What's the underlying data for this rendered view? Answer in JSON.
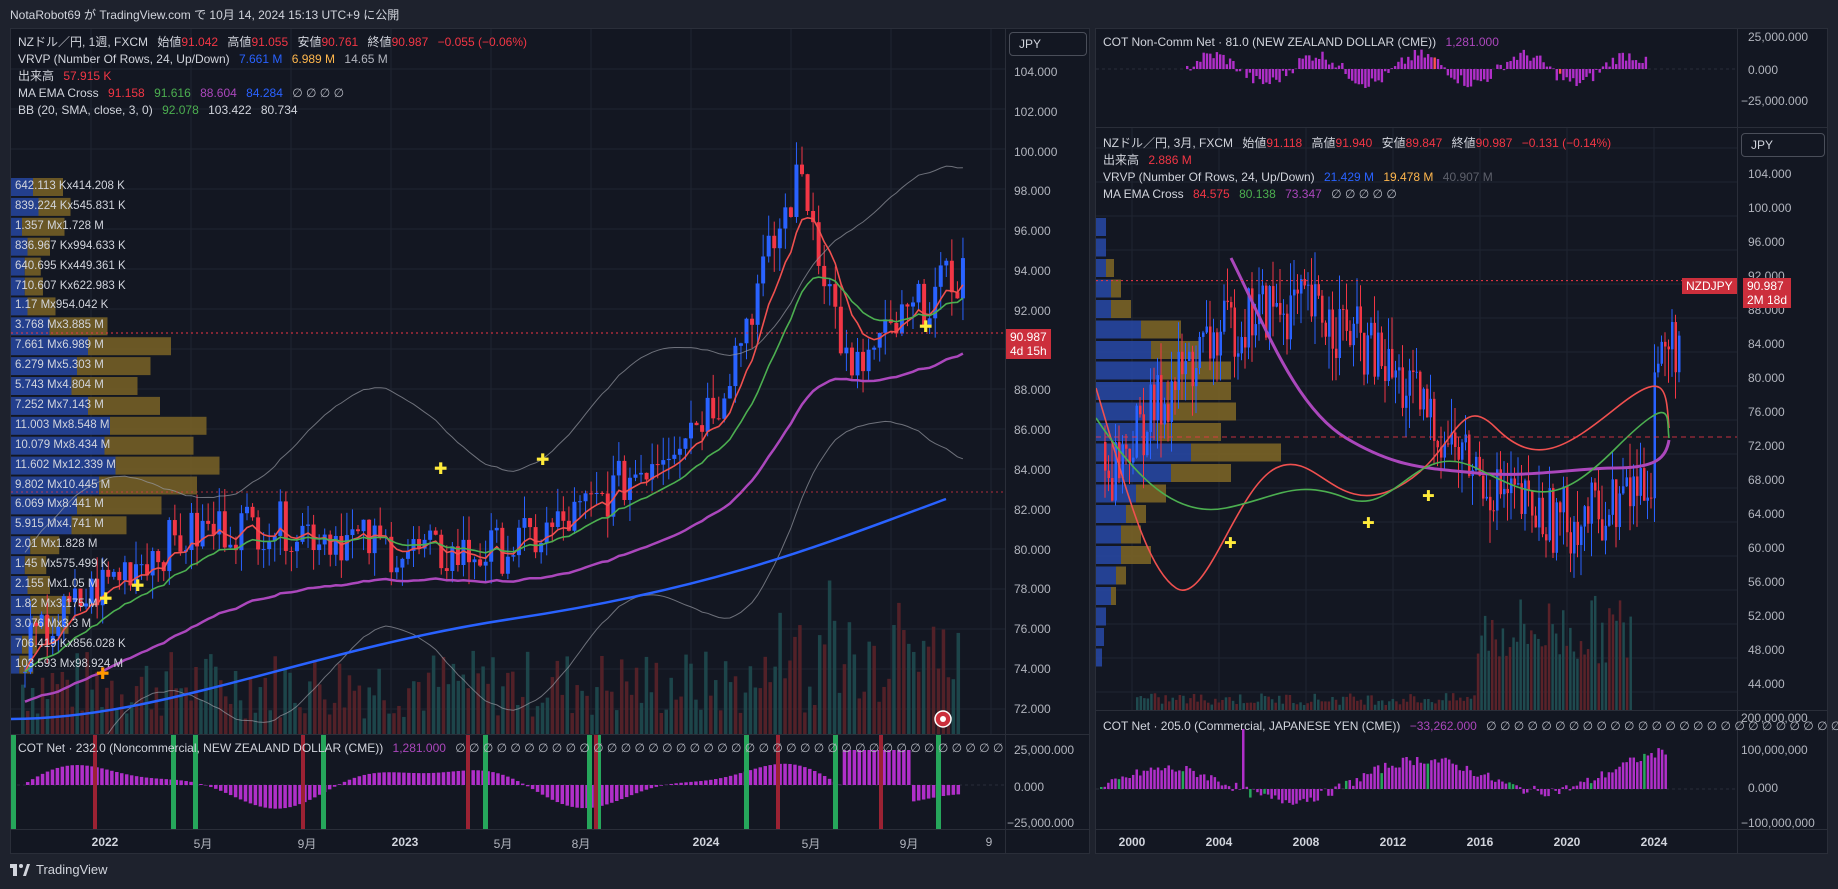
{
  "header": {
    "published": "NotaRobot69 が TradingView.com で 10月 14, 2024 15:13 UTC+9 に公開"
  },
  "footer": {
    "brand": "TradingView",
    "logo_icon": "tradingview-logo-icon"
  },
  "colors": {
    "up": "#2962ff",
    "down": "#f23645",
    "ema_red": "#f0504f",
    "ema_green": "#4caf50",
    "ma_purple": "#ab47bc",
    "ma_blue": "#2962ff",
    "vp_blue": "#2746a0",
    "vp_gold": "#7a6326",
    "cot_purple": "#b02fc9",
    "cot_green": "#26a65b"
  },
  "left": {
    "currency": "JPY",
    "legend": {
      "symbol": "NZドル／円, 1週, FXCM",
      "open_label": "始値",
      "open": "91.042",
      "high_label": "高値",
      "high": "91.055",
      "low_label": "安値",
      "low": "90.761",
      "close_label": "終値",
      "close": "90.987",
      "change": "−0.055 (−0.06%)",
      "vrvp_label": "VRVP (Number Of Rows, 24, Up/Down)",
      "vrvp_up": "7.661 M",
      "vrvp_down": "6.989 M",
      "vrvp_total": "14.65 M",
      "vol_label": "出来高",
      "vol": "57.915 K",
      "ma_label": "MA EMA Cross",
      "ma1": "91.158",
      "ma2": "91.616",
      "ma3": "88.604",
      "ma4": "84.284",
      "ma_rest": "∅ ∅ ∅ ∅",
      "bb_label": "BB (20, SMA, close, 3, 0)",
      "bb1": "92.078",
      "bb2": "103.422",
      "bb3": "80.734"
    },
    "price_ticks": [
      "104.000",
      "102.000",
      "100.000",
      "98.000",
      "96.000",
      "94.000",
      "92.000",
      "90.000",
      "88.000",
      "86.000",
      "84.000",
      "82.000",
      "80.000",
      "78.000",
      "76.000",
      "74.000",
      "72.000"
    ],
    "price_tag": {
      "price": "90.987",
      "countdown": "4d 15h"
    },
    "vp_rows": [
      "642.113 Kx414.208 K",
      "839.224 Kx545.831 K",
      "1.357 Mx1.728 M",
      "836.967 Kx994.633 K",
      "640.695 Kx449.361 K",
      "710.607 Kx622.983 K",
      "1.17 Mx954.042 K",
      "3.768 Mx3.885 M",
      "7.661 Mx6.989 M",
      "6.279 Mx5.303 M",
      "5.743 Mx4.804 M",
      "7.252 Mx7.143 M",
      "11.003 Mx8.548 M",
      "10.079 Mx8.434 M",
      "11.602 Mx12.339 M",
      "9.802 Mx10.445 M",
      "6.069 Mx8.441 M",
      "5.915 Mx4.741 M",
      "2.01 Mx1.828 M",
      "1.45 Mx575.499 K",
      "2.155 Mx1.05 M",
      "1.82 Mx3.175 M",
      "3.076 Mx3.3 M",
      "706.419 Kx856.028 K",
      "103.593 Mx98.924 M"
    ],
    "cot": {
      "label": "COT Net · 232.0 (Noncommercial, NEW ZEALAND DOLLAR (CME))",
      "value": "1,281.000",
      "rest": "∅ ∅ ∅ ∅ ∅ ∅ ∅ ∅ ∅ ∅ ∅ ∅ ∅ ∅ ∅ ∅ ∅ ∅ ∅ ∅ ∅ ∅ ∅ ∅ ∅ ∅ ∅ ∅ ∅ ∅ ∅ ∅ ∅ ∅ ∅ ∅ ∅ ∅ ∅ ∅",
      "ticks": [
        "25,000.000",
        "0.000",
        "−25,000.000"
      ]
    },
    "x_ticks": [
      {
        "t": "2022",
        "b": true
      },
      {
        "t": "5月",
        "b": false
      },
      {
        "t": "9月",
        "b": false
      },
      {
        "t": "2023",
        "b": true
      },
      {
        "t": "5月",
        "b": false
      },
      {
        "t": "8月",
        "b": false
      },
      {
        "t": "2024",
        "b": true
      },
      {
        "t": "5月",
        "b": false
      },
      {
        "t": "9月",
        "b": false
      },
      {
        "t": "9",
        "b": false
      }
    ]
  },
  "right": {
    "currency": "JPY",
    "cot_top": {
      "label": "COT Non-Comm Net · 81.0 (NEW ZEALAND DOLLAR (CME))",
      "value": "1,281.000",
      "ticks": [
        "25,000.000",
        "0.000",
        "−25,000.000"
      ]
    },
    "legend": {
      "symbol": "NZドル／円, 3月, FXCM",
      "open_label": "始値",
      "open": "91.118",
      "high_label": "高値",
      "high": "91.940",
      "low_label": "安値",
      "low": "89.847",
      "close_label": "終値",
      "close": "90.987",
      "change": "−0.131 (−0.14%)",
      "vol_label": "出来高",
      "vol": "2.886 M",
      "vrvp_label": "VRVP (Number Of Rows, 24, Up/Down)",
      "vrvp_up": "21.429 M",
      "vrvp_down": "19.478 M",
      "vrvp_total": "40.907 M",
      "ma_label": "MA EMA Cross",
      "ma1": "84.575",
      "ma2": "80.138",
      "ma3": "73.347",
      "ma_rest": "∅ ∅ ∅ ∅ ∅"
    },
    "price_ticks": [
      "104.000",
      "100.000",
      "96.000",
      "92.000",
      "88.000",
      "84.000",
      "80.000",
      "76.000",
      "72.000",
      "68.000",
      "64.000",
      "60.000",
      "56.000",
      "52.000",
      "48.000",
      "44.000"
    ],
    "price_tag": {
      "symbol": "NZDJPY",
      "price": "90.987",
      "countdown": "2M 18d"
    },
    "cot_bottom": {
      "label": "COT Net · 205.0 (Commercial, JAPANESE YEN (CME))",
      "value": "−33,262.000",
      "rest": "∅ ∅ ∅ ∅ ∅ ∅ ∅ ∅ ∅ ∅ ∅ ∅ ∅ ∅ ∅ ∅ ∅ ∅ ∅ ∅ ∅ ∅ ∅ ∅ ∅ ∅ ∅ ∅...",
      "ticks": [
        "200,000,000",
        "100,000,000",
        "0.000",
        "−100,000,000"
      ]
    },
    "x_ticks": [
      "2000",
      "2004",
      "2008",
      "2012",
      "2016",
      "2020",
      "2024"
    ]
  }
}
